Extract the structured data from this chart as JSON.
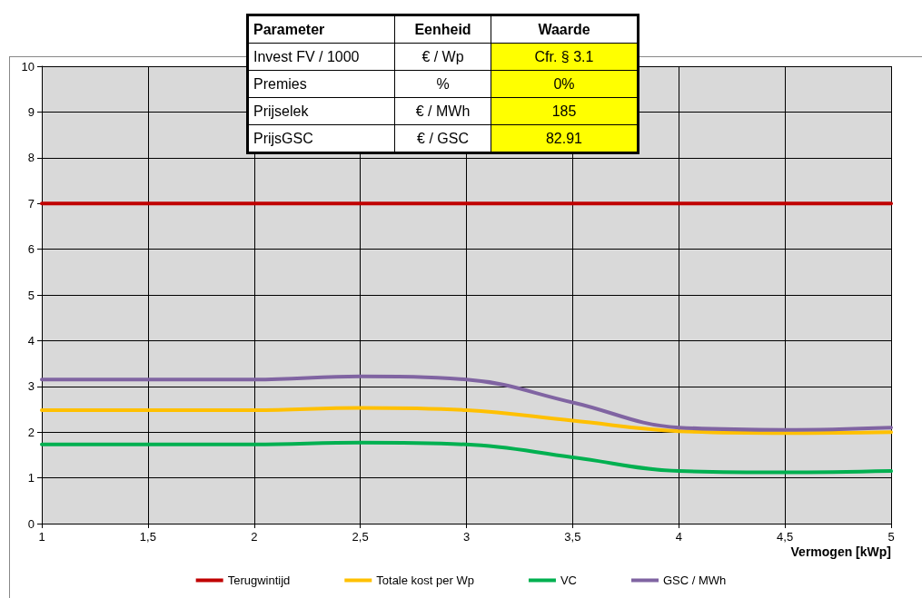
{
  "chart_data": {
    "type": "line",
    "xlabel": "Vermogen [kWp]",
    "x": [
      1,
      1.5,
      2,
      2.5,
      3,
      3.5,
      4,
      4.5,
      5
    ],
    "series": [
      {
        "name": "Terugwintijd",
        "color": "#c00000",
        "values": [
          7,
          7,
          7,
          7,
          7,
          7,
          7,
          7,
          7
        ]
      },
      {
        "name": "Totale kost per Wp",
        "color": "#ffc000",
        "values": [
          2.48,
          2.48,
          2.48,
          2.53,
          2.48,
          2.25,
          2.02,
          1.98,
          2.0
        ]
      },
      {
        "name": "VC",
        "color": "#00b050",
        "values": [
          1.73,
          1.73,
          1.73,
          1.77,
          1.73,
          1.45,
          1.15,
          1.12,
          1.15
        ]
      },
      {
        "name": "GSC / MWh",
        "color": "#8064a2",
        "values": [
          3.15,
          3.15,
          3.15,
          3.22,
          3.15,
          2.65,
          2.1,
          2.05,
          2.1
        ]
      }
    ],
    "xlim": [
      1,
      5
    ],
    "xticks": [
      1,
      {
        "value": 1.5,
        "label": "1,5"
      },
      2,
      {
        "value": 2.5,
        "label": "2,5"
      },
      3,
      {
        "value": 3.5,
        "label": "3,5"
      },
      4,
      {
        "value": 4.5,
        "label": "4,5"
      },
      5
    ],
    "ylim": [
      0,
      10
    ],
    "yticks": [
      0,
      1,
      2,
      3,
      4,
      5,
      6,
      7,
      8,
      9,
      10
    ],
    "grid": true,
    "legend": "bottom",
    "marker": "none",
    "line_style": "solid",
    "annotations": [
      "Parameter",
      "Eenheid",
      "Waarde",
      "Invest FV / 1000",
      "€ / Wp",
      "Cfr. § 3.1",
      "Premies",
      "%",
      "0%",
      "Prijselek",
      "€ / MWh",
      "185",
      "PrijsGSC",
      "€ / GSC",
      "82.91"
    ]
  }
}
